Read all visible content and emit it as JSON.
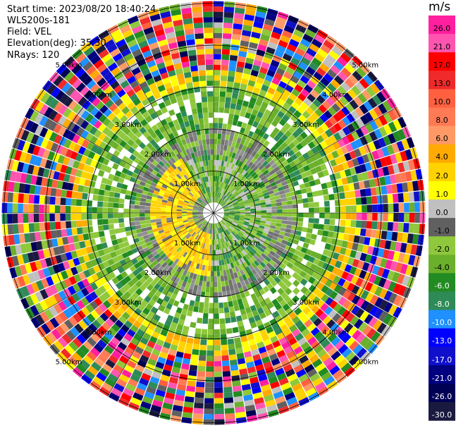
{
  "header": {
    "start_time": "Start time: 2023/08/20 18:40:24",
    "instrument": "WLS200s-181",
    "field": "Field: VEL",
    "elevation": "Elevation(deg): 35.30",
    "nrays": "NRays: 120"
  },
  "colorbar": {
    "unit": "m/s",
    "ticks": [
      "26.0",
      "21.0",
      "17.0",
      "13.0",
      "10.0",
      "8.0",
      "6.0",
      "4.0",
      "2.0",
      "1.0",
      "0.0",
      "-1.0",
      "-2.0",
      "-4.0",
      "-6.0",
      "-8.0",
      "-10.0",
      "-13.0",
      "-17.0",
      "-21.0",
      "-26.0",
      "-30.0"
    ],
    "colors": [
      "#ff1f9f",
      "#ff55b0",
      "#ff0000",
      "#f02a2a",
      "#ff6040",
      "#ff7a55",
      "#ff9a66",
      "#ffaa00",
      "#ffd200",
      "#ffff00",
      "#c0c0c0",
      "#606060",
      "#8fc83c",
      "#6ab02a",
      "#228b22",
      "#2e8b57",
      "#1e90ff",
      "#0000ff",
      "#1010cc",
      "#000080",
      "#000055",
      "#1a1a40"
    ]
  },
  "chart_data": {
    "type": "heatmap",
    "title": "",
    "projection": "polar (PPI)",
    "range_rings_km": [
      1.0,
      2.0,
      3.0,
      4.0,
      5.0
    ],
    "ring_labels": [
      "1.00km",
      "2.00km",
      "3.00km",
      "4.00km",
      "5.00km"
    ],
    "nrays": 120,
    "value_unit": "m/s",
    "value_range": [
      -30.0,
      26.0
    ],
    "features": {
      "inner_0_to_3km_north_half": "green, approx -4 to -8 m/s",
      "inner_0_to_1_5km_southwest": "yellow/orange, approx 2 to 6 m/s",
      "inner_grey_ring": "near 0 m/s",
      "outer_3km_plus": "noisy, full color range"
    }
  }
}
